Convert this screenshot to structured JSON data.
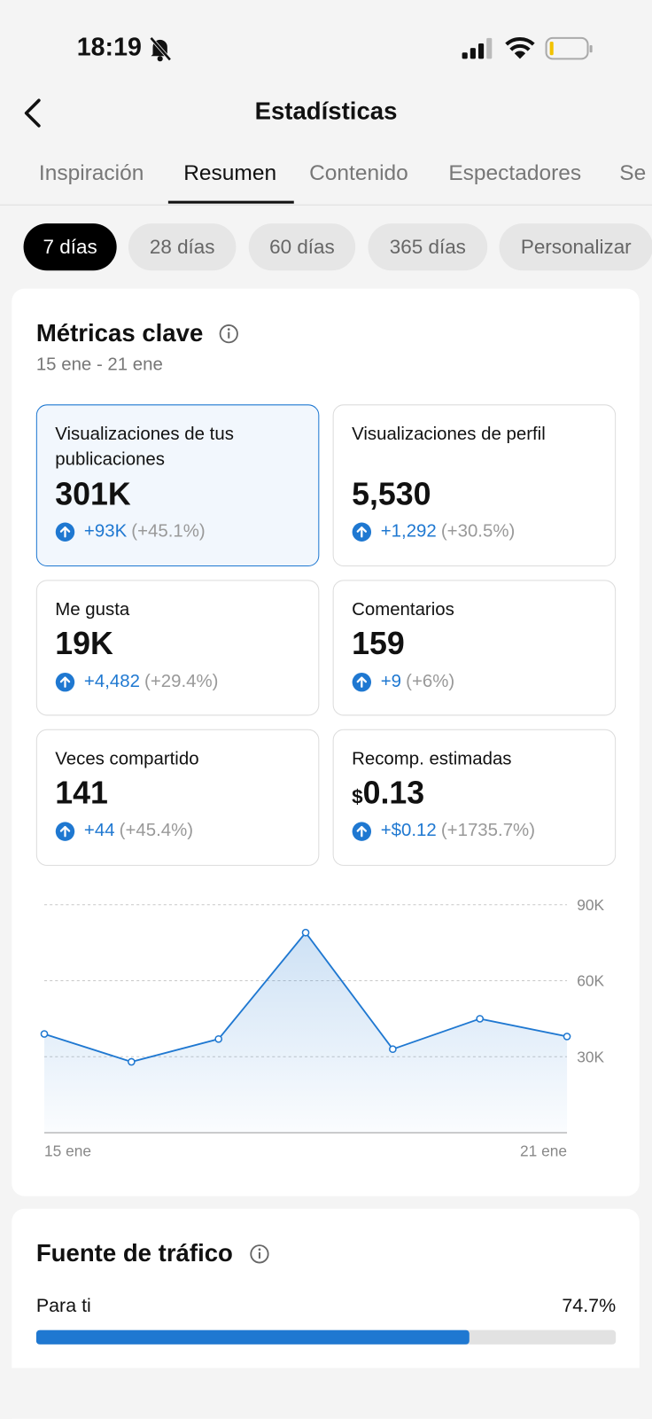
{
  "status_bar": {
    "time": "18:19"
  },
  "header": {
    "title": "Estadísticas"
  },
  "tabs": {
    "items": [
      "Inspiración",
      "Resumen",
      "Contenido",
      "Espectadores",
      "Se"
    ],
    "active": 1
  },
  "ranges": {
    "items": [
      "7 días",
      "28 días",
      "60 días",
      "365 días",
      "Personalizar"
    ],
    "active": 0
  },
  "key_metrics": {
    "title": "Métricas clave",
    "period": "15 ene - 21 ene",
    "selected": 0,
    "cards": [
      {
        "label": "Visualizaciones de tus publicaciones",
        "value": "301K",
        "change": "+93K",
        "change_pct": "(+45.1%)"
      },
      {
        "label": "Visualizaciones de perfil",
        "value": "5,530",
        "change": "+1,292",
        "change_pct": "(+30.5%)"
      },
      {
        "label": "Me gusta",
        "value": "19K",
        "change": "+4,482",
        "change_pct": "(+29.4%)"
      },
      {
        "label": "Comentarios",
        "value": "159",
        "change": "+9",
        "change_pct": "(+6%)"
      },
      {
        "label": "Veces compartido",
        "value": "141",
        "change": "+44",
        "change_pct": "(+45.4%)"
      },
      {
        "label": "Recomp. estimadas",
        "currency": "$",
        "value": "0.13",
        "change": "+$0.12",
        "change_pct": "(+1735.7%)"
      }
    ]
  },
  "chart_data": {
    "type": "line",
    "categories": [
      "15 ene",
      null,
      null,
      null,
      null,
      null,
      "21 ene"
    ],
    "values": [
      39000,
      28000,
      37000,
      79000,
      33000,
      45000,
      38000
    ],
    "color": "#1f78d1",
    "ylim": [
      0,
      90000
    ],
    "yticks": [
      {
        "value": 30000,
        "label": "30K"
      },
      {
        "value": 60000,
        "label": "60K"
      },
      {
        "value": 90000,
        "label": "90K"
      }
    ],
    "grid": true
  },
  "traffic_source": {
    "title": "Fuente de tráfico",
    "items": [
      {
        "name": "Para ti",
        "value": 74.7,
        "value_label": "74.7%"
      }
    ]
  }
}
